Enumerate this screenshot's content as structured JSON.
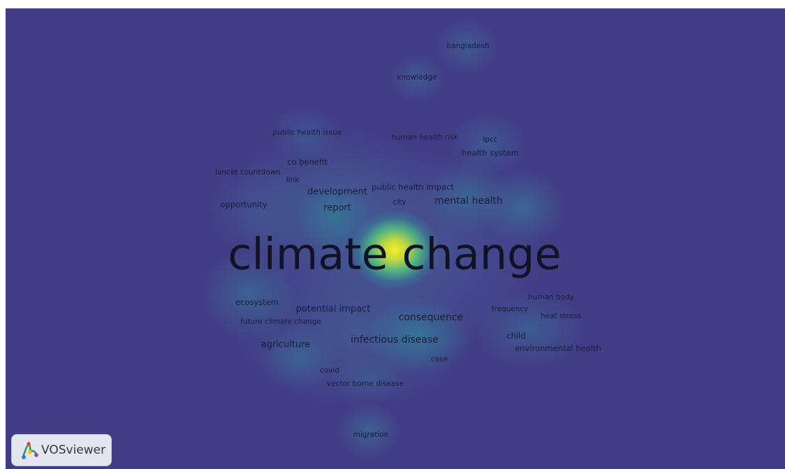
{
  "app": {
    "name": "VOSviewer"
  },
  "colors": {
    "background": "#433d86",
    "low_density": "#4a5a95",
    "mid_density": "#3aa39a",
    "high_density": "#f3ec2a"
  },
  "terms": {
    "climate_change": "climate change",
    "bangladesh": "bangladesh",
    "knowledge": "knowledge",
    "public_health_issue": "public health issue",
    "human_health_risk": "human health risk",
    "ipcc": "ipcc",
    "health_system": "health system",
    "co_benefit": "co benefit",
    "lancet_countdown": "lancet countdown",
    "link": "link",
    "public_health_impact": "public health impact",
    "development": "development",
    "city": "city",
    "mental_health": "mental health",
    "opportunity": "opportunity",
    "report": "report",
    "human_body": "human body",
    "ecosystem": "ecosystem",
    "potential_impact": "potential impact",
    "frequency": "frequency",
    "heat_stress": "heat stress",
    "future_climate_change": "future climate change",
    "consequence": "consequence",
    "child": "child",
    "agriculture": "agriculture",
    "infectious_disease": "infectious disease",
    "environmental_health": "environmental health",
    "case": "case",
    "covid": "covid",
    "vector_borne_disease": "vector borne disease",
    "migration": "migration"
  }
}
